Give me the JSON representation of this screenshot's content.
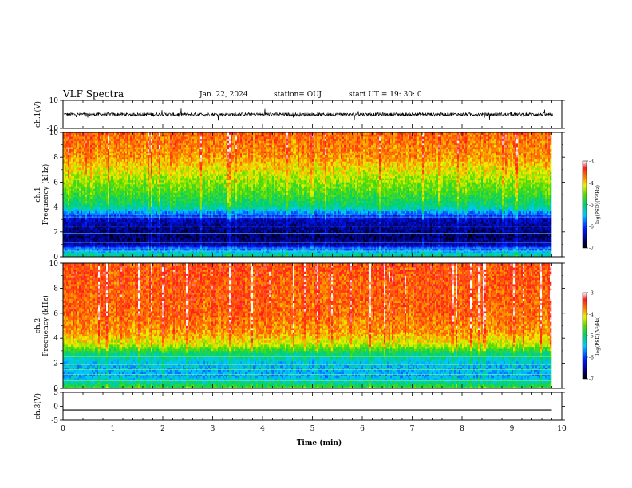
{
  "header": {
    "title": "VLF Spectra",
    "date": "Jan. 22, 2024",
    "station": "station= OUJ",
    "start": "start UT =   19: 30: 0"
  },
  "chart_data": [
    {
      "type": "line",
      "ylabel": "ch.1(V)",
      "ylim": [
        -10,
        10
      ],
      "yticks": [
        "10",
        "-10"
      ],
      "xlim": [
        0,
        10
      ],
      "series": [
        {
          "baseline": 0,
          "note_values": "noisy waveform around 0 V, spikes to about ±4 V",
          "y_mean": 0
        }
      ]
    },
    {
      "type": "heatmap",
      "ylabel_top": "ch.1",
      "ylabel": "Frequency (kHz)",
      "ylim": [
        0,
        10
      ],
      "yticks": [
        "0",
        "2",
        "4",
        "6",
        "8",
        "10"
      ],
      "xlim": [
        0,
        10
      ],
      "data_xmax": 9.8,
      "colorbar": {
        "label": "log(PSD)(V²/Hz)",
        "range": [
          -7,
          -3
        ],
        "ticks": [
          "-3",
          "-4",
          "-5",
          "-6",
          "-7"
        ]
      },
      "profile": [
        {
          "f": 0.0,
          "v": -5.0
        },
        {
          "f": 0.5,
          "v": -5.6
        },
        {
          "f": 1.0,
          "v": -6.5
        },
        {
          "f": 1.6,
          "v": -6.7
        },
        {
          "f": 2.2,
          "v": -6.6
        },
        {
          "f": 3.0,
          "v": -6.4
        },
        {
          "f": 3.5,
          "v": -5.8
        },
        {
          "f": 4.0,
          "v": -5.1
        },
        {
          "f": 5.0,
          "v": -4.7
        },
        {
          "f": 6.0,
          "v": -4.4
        },
        {
          "f": 7.0,
          "v": -4.1
        },
        {
          "f": 8.0,
          "v": -3.8
        },
        {
          "f": 10.0,
          "v": -3.6
        }
      ]
    },
    {
      "type": "heatmap",
      "ylabel_top": "ch.2",
      "ylabel": "Frequency (kHz)",
      "ylim": [
        0,
        10
      ],
      "yticks": [
        "0",
        "2",
        "4",
        "6",
        "8",
        "10"
      ],
      "xlim": [
        0,
        10
      ],
      "data_xmax": 9.8,
      "colorbar": {
        "label": "log(PSD)(V²/Hz)",
        "range": [
          -7,
          -3
        ],
        "ticks": [
          "-3",
          "-4",
          "-5",
          "-6",
          "-7"
        ]
      },
      "profile": [
        {
          "f": 0.0,
          "v": -4.6
        },
        {
          "f": 0.5,
          "v": -5.2
        },
        {
          "f": 1.0,
          "v": -5.6
        },
        {
          "f": 2.0,
          "v": -5.5
        },
        {
          "f": 2.8,
          "v": -5.0
        },
        {
          "f": 3.5,
          "v": -4.2
        },
        {
          "f": 4.5,
          "v": -3.8
        },
        {
          "f": 6.0,
          "v": -3.6
        },
        {
          "f": 10.0,
          "v": -3.5
        }
      ]
    },
    {
      "type": "line",
      "ylabel": "ch.3(V)",
      "ylim": [
        -5,
        5
      ],
      "yticks": [
        "5",
        "0",
        "-5"
      ],
      "xlim": [
        0,
        10
      ],
      "xlabel": "Time (min)",
      "xticks": [
        "0",
        "1",
        "2",
        "3",
        "4",
        "5",
        "6",
        "7",
        "8",
        "9",
        "10"
      ],
      "series": [
        {
          "constant": -1.3,
          "x_end": 9.8
        }
      ]
    }
  ]
}
